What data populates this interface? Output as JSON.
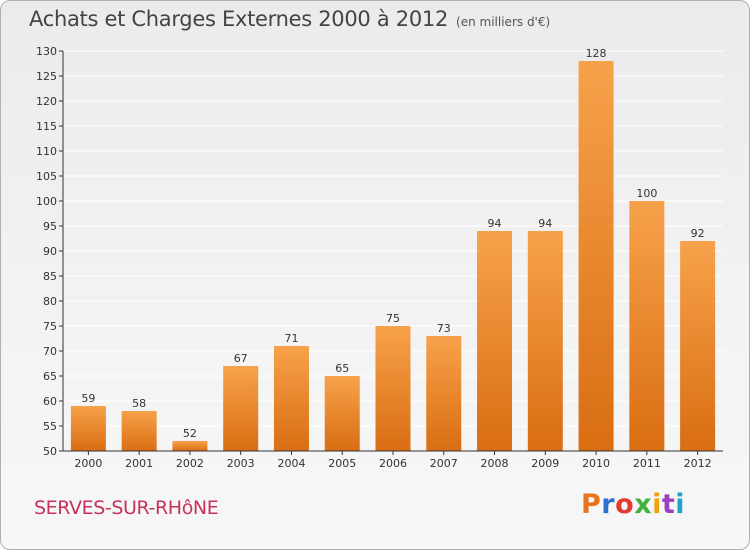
{
  "header": {
    "title": "Achats et Charges Externes 2000 à 2012",
    "subtitle": "(en milliers d'€)"
  },
  "footer": {
    "commune": "SERVES-SUR-RHôNE",
    "logo_text": "Proxiti",
    "logo_colors": [
      "#e8731d",
      "#2c6fd6",
      "#e23a2e",
      "#41b23b",
      "#f0a10f",
      "#9b3fc2",
      "#22a3c9"
    ]
  },
  "colors": {
    "bar_top": "#f7a24b",
    "bar_bottom": "#d96d12",
    "grid": "#ffffff",
    "axis": "#333333"
  },
  "chart_data": {
    "type": "bar",
    "title": "Achats et Charges Externes 2000 à 2012",
    "subtitle": "(en milliers d'€)",
    "xlabel": "",
    "ylabel": "",
    "categories": [
      "2000",
      "2001",
      "2002",
      "2003",
      "2004",
      "2005",
      "2006",
      "2007",
      "2008",
      "2009",
      "2010",
      "2011",
      "2012"
    ],
    "values": [
      59,
      58,
      52,
      67,
      71,
      65,
      75,
      73,
      94,
      94,
      128,
      100,
      92
    ],
    "ylim": [
      50,
      130
    ],
    "yticks": [
      50,
      55,
      60,
      65,
      70,
      75,
      80,
      85,
      90,
      95,
      100,
      105,
      110,
      115,
      120,
      125,
      130
    ],
    "grid": true,
    "data_labels": true
  }
}
